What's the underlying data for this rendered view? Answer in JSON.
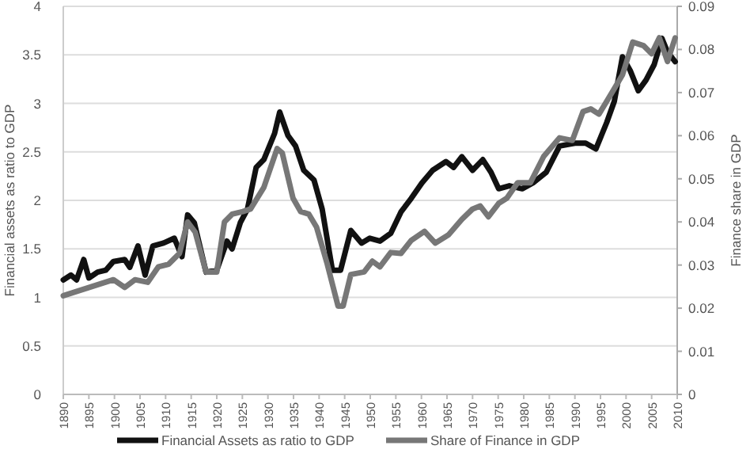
{
  "chart_data": {
    "type": "line",
    "ylabel": "Financial assets as ratio to GDP",
    "y2label": "Finance share in GDP",
    "xlim": [
      1890,
      2010
    ],
    "xticks": [
      1890,
      1895,
      1900,
      1905,
      1910,
      1915,
      1920,
      1925,
      1930,
      1935,
      1940,
      1945,
      1950,
      1955,
      1960,
      1965,
      1970,
      1975,
      1980,
      1985,
      1990,
      1995,
      2000,
      2005,
      2010
    ],
    "ylim": [
      0,
      4
    ],
    "yticks": [
      0,
      0.5,
      1,
      1.5,
      2,
      2.5,
      3,
      3.5,
      4
    ],
    "y2lim": [
      0,
      0.09
    ],
    "y2ticks": [
      0,
      0.01,
      0.02,
      0.03,
      0.04,
      0.05,
      0.06,
      0.07,
      0.08,
      0.09
    ],
    "grid": "y",
    "legend": "bottom",
    "line_style": "solid",
    "marker": "none",
    "series": [
      {
        "name": "Financial Assets as ratio to GDP",
        "color": "#111111",
        "x": [
          1890,
          1891.5,
          1892.6,
          1894,
          1895,
          1896.7,
          1898.3,
          1899.8,
          1902,
          1903,
          1904.6,
          1906,
          1907.5,
          1909.6,
          1911.7,
          1913.2,
          1914.3,
          1915.6,
          1917.9,
          1920,
          1922,
          1923,
          1924.6,
          1926,
          1927.7,
          1929.2,
          1931.3,
          1932.3,
          1933.9,
          1935.4,
          1937,
          1939,
          1940.6,
          1942.6,
          1944.2,
          1946.2,
          1948.3,
          1949.9,
          1951.9,
          1954,
          1956,
          1958,
          1960.1,
          1962.2,
          1964.8,
          1966.3,
          1967.9,
          1970,
          1972,
          1973.6,
          1975.1,
          1977.2,
          1979.7,
          1981.8,
          1984.4,
          1987,
          1990,
          1992.1,
          1994.1,
          1996.2,
          1997.7,
          1999.3,
          2000.8,
          2002.4,
          2003.9,
          2005.5,
          2007,
          2008.1,
          2009.6
        ],
        "values": [
          1.18,
          1.23,
          1.18,
          1.39,
          1.2,
          1.26,
          1.28,
          1.37,
          1.39,
          1.31,
          1.53,
          1.23,
          1.53,
          1.56,
          1.61,
          1.42,
          1.85,
          1.77,
          1.26,
          1.28,
          1.58,
          1.5,
          1.77,
          1.91,
          2.34,
          2.42,
          2.69,
          2.91,
          2.67,
          2.56,
          2.31,
          2.21,
          1.91,
          1.28,
          1.28,
          1.69,
          1.56,
          1.61,
          1.58,
          1.66,
          1.88,
          2.02,
          2.18,
          2.31,
          2.4,
          2.34,
          2.45,
          2.31,
          2.42,
          2.29,
          2.12,
          2.15,
          2.12,
          2.18,
          2.29,
          2.56,
          2.59,
          2.59,
          2.53,
          2.8,
          3.02,
          3.48,
          3.34,
          3.13,
          3.24,
          3.4,
          3.67,
          3.53,
          3.43
        ]
      },
      {
        "name": "Share of Finance in GDP",
        "color": "#777777",
        "axis": "y2",
        "x": [
          1890,
          1899.8,
          1902,
          1904,
          1906.5,
          1908.6,
          1910.6,
          1912.7,
          1914.3,
          1915.8,
          1917.9,
          1920,
          1921.5,
          1923,
          1925.1,
          1926.6,
          1929.2,
          1931.8,
          1932.8,
          1934.9,
          1936.4,
          1938,
          1939.5,
          1941.6,
          1943.7,
          1944.7,
          1946.2,
          1948.8,
          1950.4,
          1951.9,
          1954,
          1956,
          1958,
          1960.6,
          1962.7,
          1965.3,
          1967.9,
          1970,
          1971.5,
          1973.1,
          1975.1,
          1976.7,
          1978.8,
          1981.3,
          1983.9,
          1987,
          1989.5,
          1991.6,
          1993.1,
          1994.7,
          1997.2,
          1999.3,
          2001.3,
          2003.4,
          2005,
          2006.5,
          2008.1,
          2009.6
        ],
        "values": [
          0.0229,
          0.0266,
          0.0248,
          0.0266,
          0.026,
          0.0296,
          0.0302,
          0.0327,
          0.04,
          0.0376,
          0.0284,
          0.0284,
          0.04,
          0.0418,
          0.0424,
          0.043,
          0.048,
          0.057,
          0.056,
          0.0455,
          0.0424,
          0.0418,
          0.0388,
          0.0302,
          0.0205,
          0.0205,
          0.0278,
          0.0284,
          0.0309,
          0.0296,
          0.0329,
          0.0327,
          0.0357,
          0.0378,
          0.0351,
          0.037,
          0.0406,
          0.043,
          0.0437,
          0.0412,
          0.0443,
          0.0455,
          0.0491,
          0.0491,
          0.0552,
          0.0595,
          0.0589,
          0.0656,
          0.0662,
          0.065,
          0.0699,
          0.0741,
          0.0817,
          0.0809,
          0.079,
          0.0827,
          0.0772,
          0.0827
        ]
      }
    ]
  }
}
